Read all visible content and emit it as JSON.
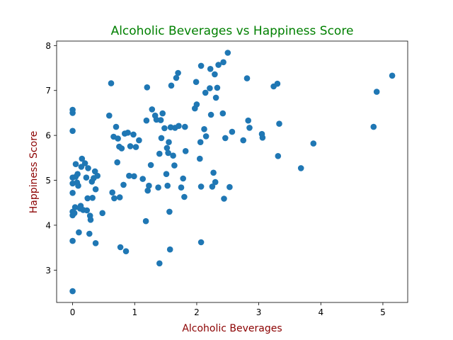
{
  "chart_data": {
    "type": "scatter",
    "title": "Alcoholic Beverages vs Happiness Score",
    "xlabel": "Alcoholic Beverages",
    "ylabel": "Happiness Score",
    "xlim": [
      -0.258,
      5.4
    ],
    "ylim": [
      2.28,
      8.1
    ],
    "xticks": [
      0,
      1,
      2,
      3,
      4,
      5
    ],
    "yticks": [
      3,
      4,
      5,
      6,
      7,
      8
    ],
    "grid": false,
    "colors": {
      "title": "#008000",
      "axis_label": "#8b0000",
      "point": "#1f77b4",
      "axis": "#000000"
    },
    "points": [
      [
        0.0,
        2.53
      ],
      [
        0.0,
        3.65
      ],
      [
        0.0,
        4.22
      ],
      [
        0.0,
        4.3
      ],
      [
        0.0,
        4.72
      ],
      [
        0.0,
        4.93
      ],
      [
        0.0,
        5.06
      ],
      [
        0.0,
        6.1
      ],
      [
        0.0,
        6.5
      ],
      [
        0.0,
        6.57
      ],
      [
        0.03,
        4.27
      ],
      [
        0.04,
        4.4
      ],
      [
        0.05,
        5.36
      ],
      [
        0.05,
        5.08
      ],
      [
        0.07,
        4.95
      ],
      [
        0.08,
        5.14
      ],
      [
        0.09,
        4.88
      ],
      [
        0.1,
        3.84
      ],
      [
        0.12,
        4.37
      ],
      [
        0.13,
        4.43
      ],
      [
        0.14,
        5.3
      ],
      [
        0.15,
        5.48
      ],
      [
        0.17,
        4.34
      ],
      [
        0.2,
        5.38
      ],
      [
        0.22,
        5.06
      ],
      [
        0.23,
        4.33
      ],
      [
        0.24,
        4.6
      ],
      [
        0.25,
        5.27
      ],
      [
        0.27,
        3.81
      ],
      [
        0.28,
        4.21
      ],
      [
        0.29,
        4.12
      ],
      [
        0.31,
        4.97
      ],
      [
        0.32,
        4.61
      ],
      [
        0.34,
        5.05
      ],
      [
        0.36,
        5.2
      ],
      [
        0.37,
        4.8
      ],
      [
        0.37,
        3.6
      ],
      [
        0.4,
        5.1
      ],
      [
        0.48,
        4.27
      ],
      [
        0.59,
        6.44
      ],
      [
        0.62,
        7.16
      ],
      [
        0.64,
        4.73
      ],
      [
        0.66,
        5.97
      ],
      [
        0.67,
        4.6
      ],
      [
        0.7,
        6.19
      ],
      [
        0.72,
        5.4
      ],
      [
        0.73,
        5.93
      ],
      [
        0.75,
        5.75
      ],
      [
        0.76,
        4.62
      ],
      [
        0.77,
        3.51
      ],
      [
        0.79,
        5.71
      ],
      [
        0.82,
        4.9
      ],
      [
        0.84,
        6.04
      ],
      [
        0.86,
        3.42
      ],
      [
        0.89,
        6.06
      ],
      [
        0.91,
        5.1
      ],
      [
        0.93,
        5.76
      ],
      [
        0.98,
        6.02
      ],
      [
        0.99,
        5.09
      ],
      [
        1.02,
        5.74
      ],
      [
        1.07,
        5.89
      ],
      [
        1.13,
        5.03
      ],
      [
        1.18,
        4.09
      ],
      [
        1.19,
        6.33
      ],
      [
        1.2,
        7.07
      ],
      [
        1.21,
        4.77
      ],
      [
        1.23,
        4.88
      ],
      [
        1.26,
        5.34
      ],
      [
        1.28,
        6.58
      ],
      [
        1.33,
        6.44
      ],
      [
        1.35,
        6.35
      ],
      [
        1.38,
        4.84
      ],
      [
        1.4,
        5.59
      ],
      [
        1.4,
        3.15
      ],
      [
        1.42,
        6.34
      ],
      [
        1.43,
        5.94
      ],
      [
        1.45,
        6.49
      ],
      [
        1.48,
        6.16
      ],
      [
        1.51,
        5.14
      ],
      [
        1.52,
        5.72
      ],
      [
        1.53,
        4.88
      ],
      [
        1.54,
        5.61
      ],
      [
        1.55,
        5.85
      ],
      [
        1.56,
        4.3
      ],
      [
        1.57,
        3.46
      ],
      [
        1.58,
        6.18
      ],
      [
        1.59,
        7.11
      ],
      [
        1.62,
        5.55
      ],
      [
        1.64,
        5.33
      ],
      [
        1.65,
        6.17
      ],
      [
        1.67,
        7.28
      ],
      [
        1.7,
        7.39
      ],
      [
        1.71,
        6.21
      ],
      [
        1.75,
        4.84
      ],
      [
        1.78,
        5.04
      ],
      [
        1.8,
        4.63
      ],
      [
        1.81,
        6.19
      ],
      [
        1.82,
        5.65
      ],
      [
        1.97,
        6.6
      ],
      [
        1.99,
        7.19
      ],
      [
        2.0,
        6.69
      ],
      [
        2.05,
        5.48
      ],
      [
        2.06,
        5.85
      ],
      [
        2.07,
        3.62
      ],
      [
        2.07,
        4.86
      ],
      [
        2.07,
        7.55
      ],
      [
        2.12,
        6.14
      ],
      [
        2.14,
        6.95
      ],
      [
        2.15,
        5.98
      ],
      [
        2.21,
        7.05
      ],
      [
        2.22,
        7.48
      ],
      [
        2.23,
        6.46
      ],
      [
        2.25,
        4.86
      ],
      [
        2.27,
        5.17
      ],
      [
        2.29,
        7.36
      ],
      [
        2.3,
        4.96
      ],
      [
        2.31,
        6.84
      ],
      [
        2.33,
        7.06
      ],
      [
        2.35,
        7.57
      ],
      [
        2.42,
        6.49
      ],
      [
        2.43,
        7.63
      ],
      [
        2.44,
        4.59
      ],
      [
        2.46,
        5.94
      ],
      [
        2.5,
        7.84
      ],
      [
        2.53,
        4.85
      ],
      [
        2.57,
        6.08
      ],
      [
        2.75,
        5.89
      ],
      [
        2.81,
        7.27
      ],
      [
        2.83,
        6.33
      ],
      [
        2.85,
        6.17
      ],
      [
        3.05,
        6.03
      ],
      [
        3.06,
        5.95
      ],
      [
        3.24,
        7.09
      ],
      [
        3.3,
        7.15
      ],
      [
        3.31,
        5.54
      ],
      [
        3.33,
        6.26
      ],
      [
        3.68,
        5.27
      ],
      [
        3.88,
        5.82
      ],
      [
        4.85,
        6.19
      ],
      [
        4.9,
        6.97
      ],
      [
        5.15,
        7.33
      ]
    ]
  }
}
